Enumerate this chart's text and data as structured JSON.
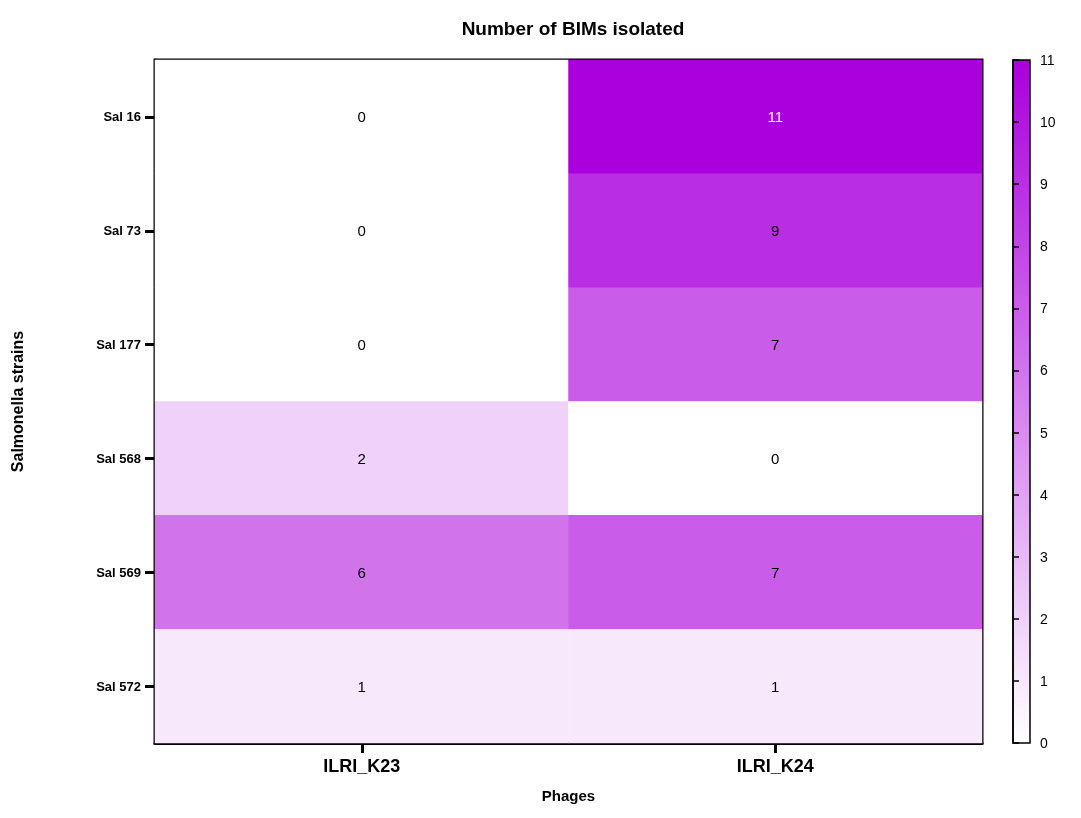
{
  "chart_data": {
    "type": "heatmap",
    "title": "Number of BIMs isolated",
    "xlabel": "Phages",
    "ylabel": "Salmonella strains",
    "categories": [
      "ILRI_K23",
      "ILRI_K24"
    ],
    "y_categories": [
      "Sal 16",
      "Sal 73",
      "Sal 177",
      "Sal 568",
      "Sal 569",
      "Sal 572"
    ],
    "cells": [
      [
        0,
        11
      ],
      [
        0,
        9
      ],
      [
        0,
        7
      ],
      [
        2,
        0
      ],
      [
        6,
        7
      ],
      [
        1,
        1
      ]
    ],
    "data_labels": true,
    "colors": [
      "#ffffff",
      "#aa00dd"
    ],
    "clim": [
      0,
      11
    ],
    "cticks": [
      0,
      1,
      2,
      3,
      4,
      5,
      6,
      7,
      8,
      9,
      10,
      11
    ]
  }
}
